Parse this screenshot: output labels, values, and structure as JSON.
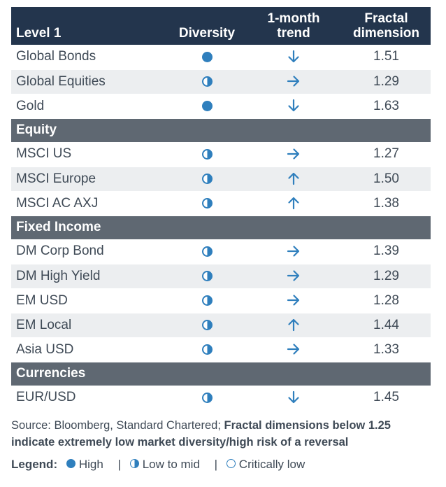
{
  "header": {
    "level": "Level 1",
    "diversity": "Diversity",
    "trend_line1": "1-month",
    "trend_line2": "trend",
    "fractal_line1": "Fractal",
    "fractal_line2": "dimension"
  },
  "level1_rows": [
    {
      "name": "Global Bonds",
      "diversity": "high",
      "trend": "down",
      "value": "1.51"
    },
    {
      "name": "Global Equities",
      "diversity": "mid",
      "trend": "right",
      "value": "1.29"
    },
    {
      "name": "Gold",
      "diversity": "high",
      "trend": "down",
      "value": "1.63"
    }
  ],
  "sections": [
    {
      "title": "Equity",
      "rows": [
        {
          "name": "MSCI US",
          "diversity": "mid",
          "trend": "right",
          "value": "1.27"
        },
        {
          "name": "MSCI Europe",
          "diversity": "mid",
          "trend": "up",
          "value": "1.50"
        },
        {
          "name": "MSCI AC AXJ",
          "diversity": "mid",
          "trend": "up",
          "value": "1.38"
        }
      ]
    },
    {
      "title": "Fixed Income",
      "rows": [
        {
          "name": "DM Corp Bond",
          "diversity": "mid",
          "trend": "right",
          "value": "1.39"
        },
        {
          "name": "DM High Yield",
          "diversity": "mid",
          "trend": "right",
          "value": "1.29"
        },
        {
          "name": "EM USD",
          "diversity": "mid",
          "trend": "right",
          "value": "1.28"
        },
        {
          "name": "EM Local",
          "diversity": "mid",
          "trend": "up",
          "value": "1.44"
        },
        {
          "name": "Asia USD",
          "diversity": "mid",
          "trend": "right",
          "value": "1.33"
        }
      ]
    },
    {
      "title": "Currencies",
      "rows": [
        {
          "name": "EUR/USD",
          "diversity": "mid",
          "trend": "down",
          "value": "1.45"
        }
      ]
    }
  ],
  "source": {
    "plain": "Source: Bloomberg, Standard Chartered; ",
    "bold": "Fractal dimensions below 1.25 indicate extremely low market diversity/high risk of a reversal"
  },
  "legend": {
    "label": "Legend:",
    "high": "High",
    "mid": "Low to mid",
    "low": "Critically low",
    "separator": "|"
  },
  "colors": {
    "header_bg": "#23354d",
    "section_bg": "#5f6872",
    "alt_row_bg": "#eceef0",
    "accent": "#2f7fbd"
  },
  "icons": {
    "high": "filled-circle-icon",
    "mid": "half-filled-circle-icon",
    "low": "empty-circle-icon",
    "up": "arrow-up-icon",
    "down": "arrow-down-icon",
    "right": "arrow-right-icon"
  }
}
